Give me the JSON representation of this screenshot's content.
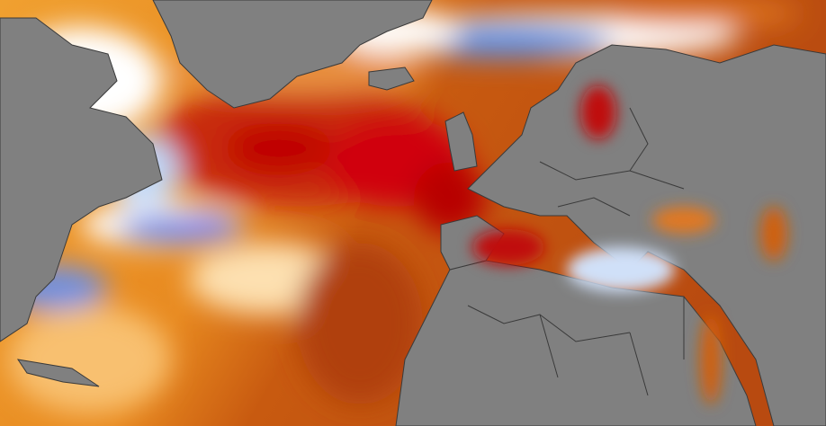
{
  "map": {
    "colors": {
      "land": "#808080",
      "border": "#3a3a3a",
      "anomaly_strong_warm": "#c00000",
      "anomaly_warm": "#d2691e",
      "anomaly_mild_warm": "#f5a623",
      "anomaly_neutral": "#ffffff",
      "anomaly_cool": "#3a6fd8",
      "anomaly_strong_cool": "#8a7fe0"
    }
  }
}
